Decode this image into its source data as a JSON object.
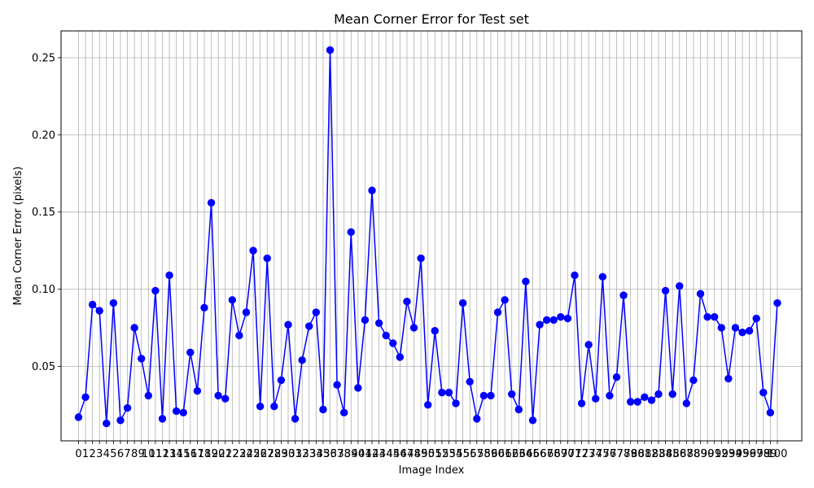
{
  "chart_data": {
    "type": "line",
    "title": "Mean Corner Error for Test set",
    "xlabel": "Image Index",
    "ylabel": "Mean Corner Error (pixels)",
    "xlim": [
      -2.5,
      103.5
    ],
    "ylim": [
      0.0017,
      0.2674
    ],
    "yticks": [
      0.05,
      0.1,
      0.15,
      0.2,
      0.25
    ],
    "ytick_labels": [
      "0.05",
      "0.10",
      "0.15",
      "0.20",
      "0.25"
    ],
    "grid": true,
    "line_color": "#0000ff",
    "marker_color": "#0000ff",
    "series": [
      {
        "x": [
          0,
          1,
          2,
          3,
          4,
          5,
          6,
          7,
          8,
          9,
          10,
          11,
          12,
          13,
          14,
          15,
          16,
          17,
          18,
          19,
          20,
          21,
          22,
          23,
          24,
          25,
          26,
          27,
          28,
          29,
          30,
          31,
          32,
          33,
          34,
          35,
          36,
          37,
          38,
          39,
          40,
          41,
          42,
          43,
          44,
          45,
          46,
          47,
          48,
          49,
          50,
          51,
          52,
          53,
          54,
          55,
          56,
          57,
          58,
          59,
          60,
          61,
          62,
          63,
          64,
          65,
          66,
          67,
          68,
          69,
          70,
          71,
          72,
          73,
          74,
          75,
          76,
          77,
          78,
          79,
          80,
          81,
          82,
          83,
          84,
          85,
          86,
          87,
          88,
          89,
          90,
          91,
          92,
          93,
          94,
          95,
          96,
          97,
          98,
          99,
          100
        ],
        "values": [
          0.017,
          0.03,
          0.09,
          0.086,
          0.013,
          0.091,
          0.015,
          0.023,
          0.075,
          0.055,
          0.031,
          0.099,
          0.016,
          0.109,
          0.021,
          0.02,
          0.059,
          0.034,
          0.088,
          0.156,
          0.031,
          0.029,
          0.093,
          0.07,
          0.085,
          0.125,
          0.024,
          0.12,
          0.024,
          0.041,
          0.077,
          0.016,
          0.054,
          0.076,
          0.085,
          0.022,
          0.255,
          0.038,
          0.02,
          0.137,
          0.036,
          0.08,
          0.164,
          0.078,
          0.07,
          0.065,
          0.056,
          0.092,
          0.075,
          0.12,
          0.025,
          0.073,
          0.033,
          0.033,
          0.026,
          0.091,
          0.04,
          0.016,
          0.031,
          0.031,
          0.085,
          0.093,
          0.032,
          0.022,
          0.105,
          0.015,
          0.077,
          0.08,
          0.08,
          0.082,
          0.081,
          0.109,
          0.026,
          0.064,
          0.029,
          0.108,
          0.031,
          0.043,
          0.096,
          0.027,
          0.027,
          0.03,
          0.028,
          0.032,
          0.099,
          0.032,
          0.102,
          0.026,
          0.041,
          0.097,
          0.082,
          0.082,
          0.075,
          0.042,
          0.075,
          0.072,
          0.073,
          0.081,
          0.033,
          0.02,
          0.091
        ]
      }
    ]
  }
}
